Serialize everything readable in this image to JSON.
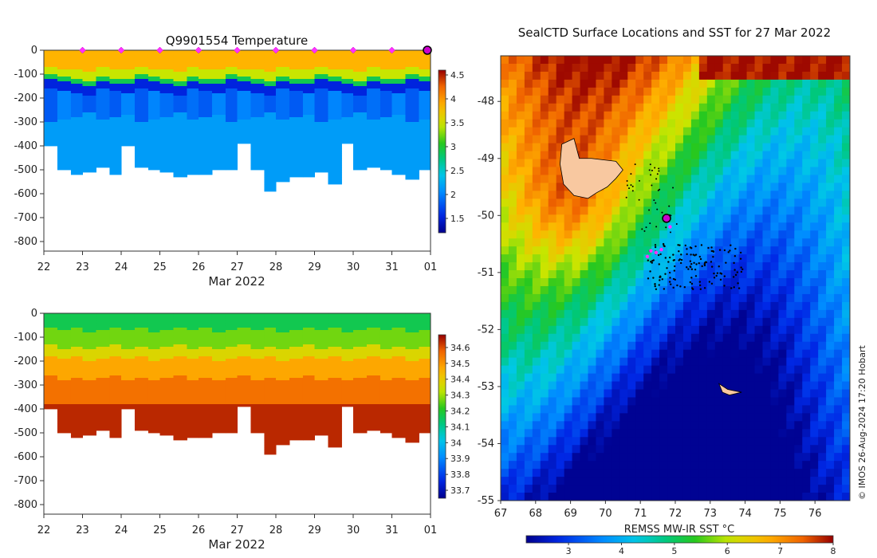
{
  "chart_data": [
    {
      "type": "heatmap",
      "title": "Q9901554  Temperature",
      "xlabel": "Mar 2022",
      "x_ticks": [
        "22",
        "23",
        "24",
        "25",
        "26",
        "27",
        "28",
        "29",
        "30",
        "31",
        "01"
      ],
      "y_ticks": [
        "0",
        "-100",
        "-200",
        "-300",
        "-400",
        "-500",
        "-600",
        "-700",
        "-800"
      ],
      "ylim": [
        -840,
        0
      ],
      "colorbar": {
        "ticks": [
          "1.5",
          "2",
          "2.5",
          "3",
          "3.5",
          "4",
          "4.5"
        ],
        "range": [
          1.2,
          4.6
        ]
      },
      "profile_days": [
        22.0,
        22.35,
        22.7,
        23.0,
        23.35,
        23.7,
        24.0,
        24.35,
        24.7,
        25.0,
        25.35,
        25.7,
        26.0,
        26.35,
        26.7,
        27.0,
        27.35,
        27.7,
        28.0,
        28.35,
        28.7,
        29.0,
        29.35,
        29.7,
        30.0,
        30.35,
        30.7,
        31.0,
        31.35,
        31.7
      ],
      "profile_max_depth": [
        400,
        495,
        515,
        505,
        490,
        520,
        395,
        490,
        500,
        505,
        530,
        515,
        515,
        500,
        500,
        390,
        500,
        585,
        545,
        525,
        525,
        510,
        555,
        390,
        500,
        490,
        495,
        520,
        540,
        500
      ],
      "surface_markers_days": [
        23,
        24,
        25,
        26,
        27,
        28,
        29,
        30,
        31
      ],
      "current_day": 32
    },
    {
      "type": "heatmap",
      "title": "",
      "xlabel": "Mar 2022",
      "x_ticks": [
        "22",
        "23",
        "24",
        "25",
        "26",
        "27",
        "28",
        "29",
        "30",
        "31",
        "01"
      ],
      "y_ticks": [
        "0",
        "-100",
        "-200",
        "-300",
        "-400",
        "-500",
        "-600",
        "-700",
        "-800"
      ],
      "ylim": [
        -840,
        0
      ],
      "colorbar": {
        "ticks": [
          "33.7",
          "33.8",
          "33.9",
          "34",
          "34.1",
          "34.2",
          "34.3",
          "34.4",
          "34.5",
          "34.6"
        ],
        "range": [
          33.65,
          34.68
        ]
      }
    },
    {
      "type": "scatter",
      "title": "SealCTD Surface Locations and SST for 27 Mar 2022",
      "xlim": [
        67,
        77
      ],
      "ylim": [
        -55,
        -47.2
      ],
      "x_ticks": [
        "67",
        "68",
        "69",
        "70",
        "71",
        "72",
        "73",
        "74",
        "75",
        "76"
      ],
      "y_ticks": [
        "-48",
        "-49",
        "-50",
        "-51",
        "-52",
        "-53",
        "-54",
        "-55"
      ],
      "colorbar": {
        "label": "REMSS MW-IR SST °C",
        "ticks": [
          "3",
          "4",
          "5",
          "6",
          "7",
          "8"
        ],
        "range": [
          2.2,
          8
        ]
      },
      "current_position": [
        71.75,
        -50.05
      ],
      "recent_positions": [
        [
          71.3,
          -50.62
        ],
        [
          71.45,
          -50.65
        ],
        [
          71.6,
          -50.6
        ],
        [
          71.2,
          -50.72
        ],
        [
          71.85,
          -50.2
        ]
      ],
      "islands": [
        "Kerguelen",
        "Heard Island"
      ]
    }
  ],
  "credit": "© IMOS 26-Aug-2024 17:20 Hobart"
}
